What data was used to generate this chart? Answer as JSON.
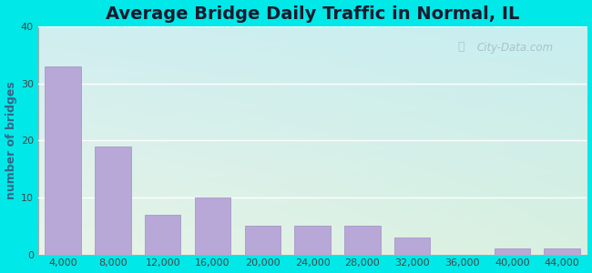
{
  "title": "Average Bridge Daily Traffic in Normal, IL",
  "ylabel": "number of bridges",
  "categories": [
    "4,000",
    "8,000",
    "12,000",
    "16,000",
    "20,000",
    "24,000",
    "28,000",
    "32,000",
    "36,000",
    "40,000",
    "44,000"
  ],
  "values": [
    33,
    19,
    7,
    10,
    5,
    5,
    5,
    3,
    0,
    1,
    1
  ],
  "bar_color": "#b8a8d8",
  "bar_edge_color": "#a898c8",
  "ylim": [
    0,
    40
  ],
  "yticks": [
    0,
    10,
    20,
    30,
    40
  ],
  "background_outer": "#00e8e8",
  "bg_top_left": "#e8f4e8",
  "bg_bottom_right": "#c8eef0",
  "title_fontsize": 14,
  "axis_label_fontsize": 9,
  "tick_fontsize": 8,
  "watermark_text": "City-Data.com",
  "watermark_color": "#a8bcc8",
  "ylabel_color": "#336688"
}
